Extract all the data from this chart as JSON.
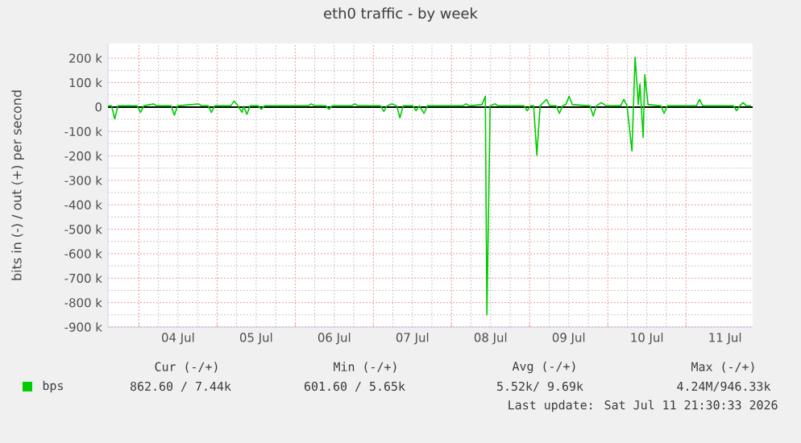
{
  "chart_data": {
    "type": "line",
    "title": "eth0 traffic - by week",
    "ylabel": "bits in (-) / out (+) per second",
    "x": [
      "2026-07-03T14:36",
      "2026-07-03T15:35",
      "2026-07-03T16:35",
      "2026-07-03T17:34",
      "2026-07-03T23:30",
      "2026-07-04T00:30",
      "2026-07-04T01:29",
      "2026-07-04T04:27",
      "2026-07-04T05:26",
      "2026-07-04T09:54",
      "2026-07-04T10:53",
      "2026-07-04T11:53",
      "2026-07-04T18:18",
      "2026-07-04T19:18",
      "2026-07-04T21:17",
      "2026-07-04T22:16",
      "2026-07-04T23:15",
      "2026-07-05T04:12",
      "2026-07-05T05:11",
      "2026-07-05T06:11",
      "2026-07-05T07:40",
      "2026-07-05T08:10",
      "2026-07-05T09:09",
      "2026-07-05T10:08",
      "2026-07-05T12:37",
      "2026-07-05T13:36",
      "2026-07-05T14:35",
      "2026-07-06T03:57",
      "2026-07-06T04:56",
      "2026-07-06T05:56",
      "2026-07-06T09:24",
      "2026-07-06T10:23",
      "2026-07-06T11:23",
      "2026-07-06T17:19",
      "2026-07-06T18:18",
      "2026-07-06T19:17",
      "2026-07-07T02:13",
      "2026-07-07T03:13",
      "2026-07-07T04:12",
      "2026-07-07T05:41",
      "2026-07-07T07:10",
      "2026-07-07T08:10",
      "2026-07-07T09:09",
      "2026-07-07T12:07",
      "2026-07-07T13:07",
      "2026-07-07T14:06",
      "2026-07-07T15:35",
      "2026-07-07T16:34",
      "2026-07-08T03:27",
      "2026-07-08T04:26",
      "2026-07-08T05:26",
      "2026-07-08T09:23",
      "2026-07-08T10:23",
      "2026-07-08T10:53",
      "2026-07-08T11:52",
      "2026-07-08T13:21",
      "2026-07-08T14:20",
      "2026-07-08T22:16",
      "2026-07-08T23:15",
      "2026-07-09T00:14",
      "2026-07-09T01:14",
      "2026-07-09T02:13",
      "2026-07-09T03:13",
      "2026-07-09T05:11",
      "2026-07-09T06:10",
      "2026-07-09T08:09",
      "2026-07-09T09:08",
      "2026-07-09T10:08",
      "2026-07-09T11:07",
      "2026-07-09T12:07",
      "2026-07-09T13:06",
      "2026-07-09T18:32",
      "2026-07-09T19:32",
      "2026-07-09T20:31",
      "2026-07-09T22:01",
      "2026-07-09T23:29",
      "2026-07-10T03:57",
      "2026-07-10T04:56",
      "2026-07-10T05:55",
      "2026-07-10T07:25",
      "2026-07-10T08:24",
      "2026-07-10T09:23",
      "2026-07-10T09:53",
      "2026-07-10T10:52",
      "2026-07-10T11:22",
      "2026-07-10T12:22",
      "2026-07-10T16:19",
      "2026-07-10T17:18",
      "2026-07-10T18:17",
      "2026-07-11T03:12",
      "2026-07-11T04:11",
      "2026-07-11T05:11",
      "2026-07-11T14:35",
      "2026-07-11T15:34",
      "2026-07-11T16:34",
      "2026-07-11T17:33",
      "2026-07-11T18:32",
      "2026-07-11T20:01"
    ],
    "series": [
      {
        "name": "bps",
        "color": "#00cc00",
        "values": [
          5000,
          5000,
          -48000,
          5000,
          5000,
          -22000,
          5000,
          13000,
          5000,
          5000,
          -33000,
          5000,
          13000,
          5000,
          5000,
          -22000,
          5000,
          5000,
          24000,
          10000,
          -22000,
          3000,
          -30000,
          5000,
          5000,
          -9000,
          5000,
          5000,
          13000,
          5000,
          5000,
          -9000,
          5000,
          5000,
          13000,
          5000,
          5000,
          -18000,
          5000,
          13000,
          5000,
          -44000,
          5000,
          5000,
          -15000,
          5000,
          -26000,
          5000,
          5000,
          13000,
          5000,
          10000,
          44000,
          -850000,
          5000,
          13000,
          5000,
          5000,
          -15000,
          5000,
          5000,
          -197000,
          5000,
          31000,
          5000,
          5000,
          -26000,
          5000,
          10000,
          44000,
          10000,
          5000,
          -37000,
          5000,
          18000,
          5000,
          5000,
          31000,
          5000,
          -180000,
          204000,
          10000,
          94000,
          -125000,
          132000,
          10000,
          5000,
          -26000,
          5000,
          5000,
          31000,
          5000,
          5000,
          -15000,
          5000,
          18000,
          5000,
          5000
        ]
      }
    ],
    "xlim": [
      "2026-07-03T14:30",
      "2026-07-11T20:30"
    ],
    "xticks": [
      {
        "value": "2026-07-04T00:00",
        "label": null
      },
      {
        "value": "2026-07-04T12:00",
        "label": "04 Jul"
      },
      {
        "value": "2026-07-05T00:00",
        "label": null
      },
      {
        "value": "2026-07-05T12:00",
        "label": "05 Jul"
      },
      {
        "value": "2026-07-06T00:00",
        "label": null
      },
      {
        "value": "2026-07-06T12:00",
        "label": "06 Jul"
      },
      {
        "value": "2026-07-07T00:00",
        "label": null
      },
      {
        "value": "2026-07-07T12:00",
        "label": "07 Jul"
      },
      {
        "value": "2026-07-08T00:00",
        "label": null
      },
      {
        "value": "2026-07-08T12:00",
        "label": "08 Jul"
      },
      {
        "value": "2026-07-09T00:00",
        "label": null
      },
      {
        "value": "2026-07-09T12:00",
        "label": "09 Jul"
      },
      {
        "value": "2026-07-10T00:00",
        "label": null
      },
      {
        "value": "2026-07-10T12:00",
        "label": "10 Jul"
      },
      {
        "value": "2026-07-11T00:00",
        "label": null
      },
      {
        "value": "2026-07-11T12:00",
        "label": "11 Jul"
      }
    ],
    "ylim": [
      -900000,
      260000
    ],
    "yticks": [
      {
        "value": -900000,
        "label": "-900 k"
      },
      {
        "value": -800000,
        "label": "-800 k"
      },
      {
        "value": -700000,
        "label": "-700 k"
      },
      {
        "value": -600000,
        "label": "-600 k"
      },
      {
        "value": -500000,
        "label": "-500 k"
      },
      {
        "value": -400000,
        "label": "-400 k"
      },
      {
        "value": -300000,
        "label": "-300 k"
      },
      {
        "value": -200000,
        "label": "-200 k"
      },
      {
        "value": -100000,
        "label": "-100 k"
      },
      {
        "value": 0,
        "label": "0"
      },
      {
        "value": 100000,
        "label": "100 k"
      },
      {
        "value": 200000,
        "label": "200 k"
      }
    ],
    "ref_lines": [
      {
        "axis": "y",
        "value": 0,
        "color": "#000000"
      }
    ],
    "grid": true,
    "legend": "bottom left",
    "marker": "none",
    "line_style": "solid",
    "annotations": [
      "Cur (-/+)",
      "Min (-/+)",
      "Avg (-/+)",
      "Max (-/+)",
      "862.60 /   7.44k",
      "601.60 /   5.65k",
      "5.52k/   9.69k",
      "4.24M/946.33k",
      "Last update: Sat Jul 11 21:30:33 2026"
    ]
  }
}
